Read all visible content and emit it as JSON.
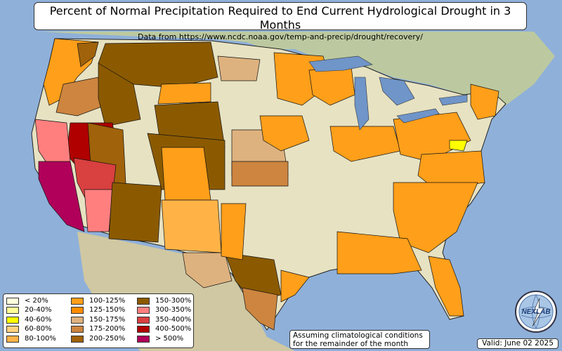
{
  "title": "Percent of Normal Precipitation Required to End Current Hydrological Drought in 3 Months",
  "subtitle": "Data from https://www.ncdc.noaa.gov/temp-and-precip/drought/recovery/",
  "note_line1": "Assuming climatological conditions",
  "note_line2": "for the remainder of the month",
  "valid": "Valid: June 02 2025",
  "logo_text": "NEXLAB",
  "logo_icon": "lightning-globe-logo",
  "colors": {
    "ocean": "#8fb0d9",
    "land": "#e7e2c2",
    "lake": "#6f95c9"
  },
  "legend": [
    {
      "label": "< 20%",
      "color": "#ffffdd"
    },
    {
      "label": "20-40%",
      "color": "#ffff99"
    },
    {
      "label": "40-60%",
      "color": "#ffff00"
    },
    {
      "label": "60-80%",
      "color": "#ffd27f"
    },
    {
      "label": "80-100%",
      "color": "#ffb347"
    },
    {
      "label": "100-125%",
      "color": "#ff9f1a"
    },
    {
      "label": "125-150%",
      "color": "#ff8c00"
    },
    {
      "label": "150-175%",
      "color": "#deb27f"
    },
    {
      "label": "175-200%",
      "color": "#cd853f"
    },
    {
      "label": "200-250%",
      "color": "#a0620a"
    },
    {
      "label": "150-300%",
      "color": "#8b5a00"
    },
    {
      "label": "300-350%",
      "color": "#ff7f7f"
    },
    {
      "label": "350-400%",
      "color": "#d94040"
    },
    {
      "label": "400-500%",
      "color": "#b00000"
    },
    {
      "label": "> 500%",
      "color": "#b0005a"
    }
  ]
}
